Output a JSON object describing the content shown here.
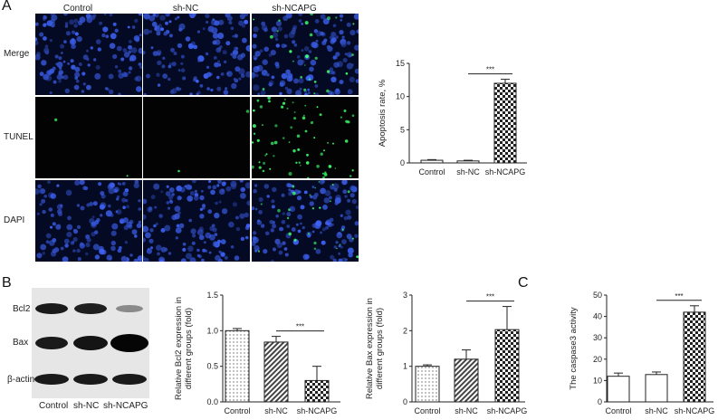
{
  "panels": {
    "a": "A",
    "b": "B",
    "c": "C"
  },
  "micrograph": {
    "columns": [
      "Control",
      "sh-NC",
      "sh-NCAPG"
    ],
    "rows": [
      "Merge",
      "TUNEL",
      "DAPI"
    ]
  },
  "western_blot": {
    "bands": [
      "Bcl2",
      "Bax",
      "β-actin"
    ],
    "lanes": [
      "Control",
      "sh-NC",
      "sh-NCAPG"
    ]
  },
  "chart_data": [
    {
      "id": "apoptosis",
      "type": "bar",
      "categories": [
        "Control",
        "sh-NC",
        "sh-NCAPG"
      ],
      "values": [
        0.4,
        0.3,
        12.0
      ],
      "errors": [
        0.1,
        0.1,
        0.6
      ],
      "ylabel": "Apoptosis rate, %",
      "ylim": [
        0,
        15
      ],
      "yticks": [
        0,
        5,
        10,
        15
      ],
      "significance": {
        "from": 1,
        "to": 2,
        "label": "***"
      },
      "patterns": [
        "white",
        "white",
        "checker"
      ]
    },
    {
      "id": "bcl2",
      "type": "bar",
      "categories": [
        "Control",
        "sh-NC",
        "sh-NCAPG"
      ],
      "values": [
        1.0,
        0.84,
        0.3
      ],
      "errors": [
        0.03,
        0.08,
        0.2
      ],
      "ylabel": "Relative Bcl2 expression in different groups (fold)",
      "ylim": [
        0,
        1.5
      ],
      "yticks": [
        0.0,
        0.5,
        1.0,
        1.5
      ],
      "significance": {
        "from": 1,
        "to": 2,
        "label": "***"
      },
      "patterns": [
        "dots",
        "diagonal",
        "checker"
      ]
    },
    {
      "id": "bax",
      "type": "bar",
      "categories": [
        "Control",
        "sh-NC",
        "sh-NCAPG"
      ],
      "values": [
        1.0,
        1.2,
        2.03
      ],
      "errors": [
        0.04,
        0.26,
        0.65
      ],
      "ylabel": "Relative Bax expression in different groups (fold)",
      "ylim": [
        0,
        3
      ],
      "yticks": [
        0,
        1,
        2,
        3
      ],
      "significance": {
        "from": 1,
        "to": 2,
        "label": "***"
      },
      "patterns": [
        "dots",
        "diagonal",
        "checker"
      ]
    },
    {
      "id": "caspase3",
      "type": "bar",
      "categories": [
        "Control",
        "sh-NC",
        "sh-NCAPG"
      ],
      "values": [
        12.0,
        12.8,
        42.0
      ],
      "errors": [
        1.5,
        1.2,
        3.0
      ],
      "ylabel": "The caspase3 activity",
      "ylim": [
        0,
        50
      ],
      "yticks": [
        0,
        10,
        20,
        30,
        40,
        50
      ],
      "significance": {
        "from": 1,
        "to": 2,
        "label": "***"
      },
      "patterns": [
        "white",
        "white",
        "checker"
      ]
    }
  ]
}
